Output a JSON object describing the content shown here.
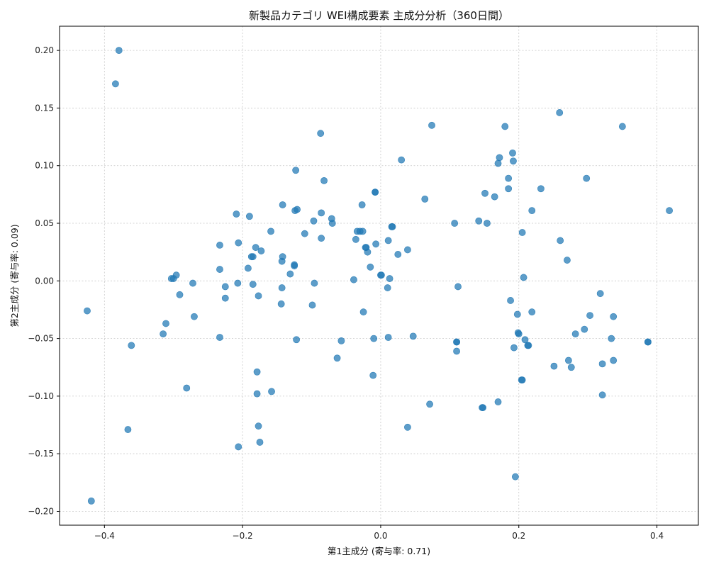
{
  "chart_data": {
    "type": "scatter",
    "title": "新製品カテゴリ WEI構成要素 主成分分析（360日間）",
    "xlabel": "第1主成分 (寄与率: 0.71)",
    "ylabel": "第2主成分 (寄与率: 0.09)",
    "xlim": [
      -0.465,
      0.46
    ],
    "ylim": [
      -0.212,
      0.221
    ],
    "xticks": [
      -0.4,
      -0.2,
      0.0,
      0.2,
      0.4
    ],
    "xtick_labels": [
      "−0.4",
      "−0.2",
      "0.0",
      "0.2",
      "0.4"
    ],
    "yticks": [
      -0.2,
      -0.15,
      -0.1,
      -0.05,
      0.0,
      0.05,
      0.1,
      0.15,
      0.2
    ],
    "ytick_labels": [
      "−0.20",
      "−0.15",
      "−0.10",
      "−0.05",
      "0.00",
      "0.05",
      "0.10",
      "0.15",
      "0.20"
    ],
    "grid": true,
    "color": "#1f77b4",
    "points": [
      [
        -0.379,
        0.2
      ],
      [
        -0.384,
        0.171
      ],
      [
        -0.425,
        -0.026
      ],
      [
        -0.419,
        -0.191
      ],
      [
        -0.361,
        -0.056
      ],
      [
        -0.366,
        -0.129
      ],
      [
        -0.315,
        -0.046
      ],
      [
        -0.311,
        -0.037
      ],
      [
        -0.303,
        0.002
      ],
      [
        -0.3,
        0.002
      ],
      [
        -0.296,
        0.005
      ],
      [
        -0.291,
        -0.012
      ],
      [
        -0.281,
        -0.093
      ],
      [
        -0.272,
        -0.002
      ],
      [
        -0.27,
        -0.031
      ],
      [
        -0.233,
        0.031
      ],
      [
        -0.233,
        0.01
      ],
      [
        -0.233,
        -0.049
      ],
      [
        -0.225,
        -0.005
      ],
      [
        -0.225,
        -0.015
      ],
      [
        -0.209,
        0.058
      ],
      [
        -0.206,
        0.033
      ],
      [
        -0.207,
        -0.002
      ],
      [
        -0.206,
        -0.144
      ],
      [
        -0.192,
        0.011
      ],
      [
        -0.19,
        0.056
      ],
      [
        -0.187,
        0.021
      ],
      [
        -0.185,
        0.021
      ],
      [
        -0.185,
        -0.003
      ],
      [
        -0.181,
        0.029
      ],
      [
        -0.177,
        -0.013
      ],
      [
        -0.179,
        -0.079
      ],
      [
        -0.179,
        -0.098
      ],
      [
        -0.177,
        -0.126
      ],
      [
        -0.175,
        -0.14
      ],
      [
        -0.173,
        0.026
      ],
      [
        -0.159,
        0.043
      ],
      [
        -0.158,
        -0.096
      ],
      [
        -0.142,
        0.066
      ],
      [
        -0.142,
        0.021
      ],
      [
        -0.143,
        0.017
      ],
      [
        -0.143,
        -0.006
      ],
      [
        -0.144,
        -0.02
      ],
      [
        -0.131,
        0.006
      ],
      [
        -0.125,
        0.014
      ],
      [
        -0.125,
        0.013
      ],
      [
        -0.124,
        0.061
      ],
      [
        -0.121,
        0.062
      ],
      [
        -0.123,
        0.096
      ],
      [
        -0.122,
        -0.051
      ],
      [
        -0.11,
        0.041
      ],
      [
        -0.099,
        -0.021
      ],
      [
        -0.097,
        0.052
      ],
      [
        -0.096,
        -0.002
      ],
      [
        -0.087,
        0.128
      ],
      [
        -0.086,
        0.059
      ],
      [
        -0.086,
        0.037
      ],
      [
        -0.082,
        0.087
      ],
      [
        -0.071,
        0.054
      ],
      [
        -0.07,
        0.05
      ],
      [
        -0.063,
        -0.067
      ],
      [
        -0.057,
        -0.052
      ],
      [
        -0.039,
        0.001
      ],
      [
        -0.036,
        0.036
      ],
      [
        -0.034,
        0.043
      ],
      [
        -0.03,
        0.043
      ],
      [
        -0.027,
        0.066
      ],
      [
        -0.026,
        0.043
      ],
      [
        -0.025,
        -0.027
      ],
      [
        -0.022,
        0.029
      ],
      [
        -0.021,
        0.029
      ],
      [
        -0.019,
        0.025
      ],
      [
        -0.015,
        0.012
      ],
      [
        -0.011,
        -0.082
      ],
      [
        -0.01,
        -0.05
      ],
      [
        -0.008,
        0.077
      ],
      [
        -0.008,
        0.077
      ],
      [
        -0.007,
        0.032
      ],
      [
        0.0,
        0.005
      ],
      [
        0.001,
        0.005
      ],
      [
        0.01,
        -0.006
      ],
      [
        0.011,
        -0.049
      ],
      [
        0.011,
        0.035
      ],
      [
        0.013,
        0.002
      ],
      [
        0.016,
        0.047
      ],
      [
        0.017,
        0.047
      ],
      [
        0.025,
        0.023
      ],
      [
        0.03,
        0.105
      ],
      [
        0.039,
        0.027
      ],
      [
        0.039,
        -0.127
      ],
      [
        0.047,
        -0.048
      ],
      [
        0.064,
        0.071
      ],
      [
        0.071,
        -0.107
      ],
      [
        0.074,
        0.135
      ],
      [
        0.107,
        0.05
      ],
      [
        0.11,
        -0.053
      ],
      [
        0.11,
        -0.053
      ],
      [
        0.11,
        -0.061
      ],
      [
        0.112,
        -0.005
      ],
      [
        0.142,
        0.052
      ],
      [
        0.147,
        -0.11
      ],
      [
        0.148,
        -0.11
      ],
      [
        0.151,
        0.076
      ],
      [
        0.154,
        0.05
      ],
      [
        0.165,
        0.073
      ],
      [
        0.17,
        0.102
      ],
      [
        0.17,
        -0.105
      ],
      [
        0.172,
        0.107
      ],
      [
        0.18,
        0.134
      ],
      [
        0.185,
        0.089
      ],
      [
        0.185,
        0.08
      ],
      [
        0.188,
        -0.017
      ],
      [
        0.191,
        0.111
      ],
      [
        0.192,
        0.104
      ],
      [
        0.193,
        -0.058
      ],
      [
        0.195,
        -0.17
      ],
      [
        0.198,
        -0.029
      ],
      [
        0.199,
        -0.045
      ],
      [
        0.2,
        -0.046
      ],
      [
        0.204,
        -0.086
      ],
      [
        0.205,
        -0.086
      ],
      [
        0.205,
        0.042
      ],
      [
        0.207,
        0.003
      ],
      [
        0.209,
        -0.051
      ],
      [
        0.213,
        -0.056
      ],
      [
        0.214,
        -0.056
      ],
      [
        0.219,
        -0.027
      ],
      [
        0.219,
        0.061
      ],
      [
        0.232,
        0.08
      ],
      [
        0.251,
        -0.074
      ],
      [
        0.259,
        0.146
      ],
      [
        0.26,
        0.035
      ],
      [
        0.27,
        0.018
      ],
      [
        0.272,
        -0.069
      ],
      [
        0.276,
        -0.075
      ],
      [
        0.282,
        -0.046
      ],
      [
        0.295,
        -0.042
      ],
      [
        0.298,
        0.089
      ],
      [
        0.303,
        -0.03
      ],
      [
        0.318,
        -0.011
      ],
      [
        0.321,
        -0.072
      ],
      [
        0.321,
        -0.099
      ],
      [
        0.334,
        -0.05
      ],
      [
        0.337,
        -0.031
      ],
      [
        0.337,
        -0.069
      ],
      [
        0.35,
        0.134
      ],
      [
        0.387,
        -0.053
      ],
      [
        0.387,
        -0.053
      ],
      [
        0.418,
        0.061
      ]
    ]
  }
}
